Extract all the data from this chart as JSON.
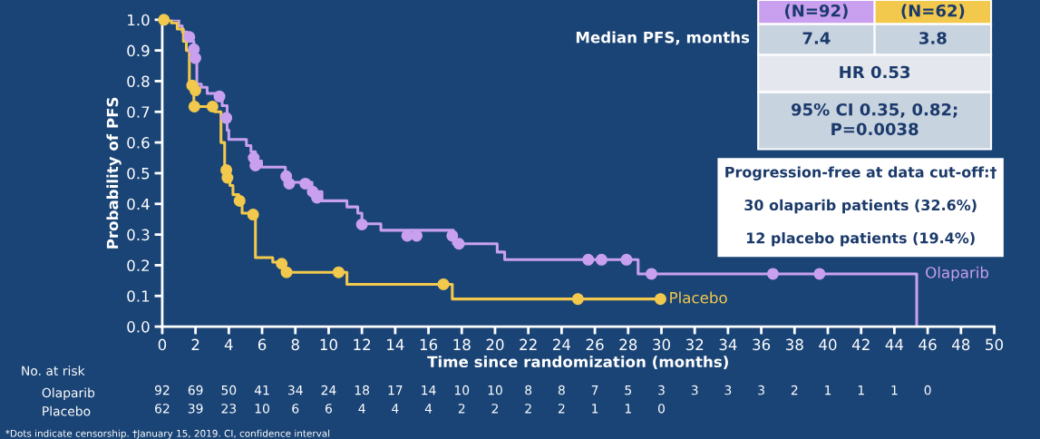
{
  "chart_data": {
    "type": "step",
    "xlabel": "Time since randomization (months)",
    "ylabel": "Probability of PFS",
    "xlim": [
      0,
      50
    ],
    "xticks": [
      0,
      2,
      4,
      6,
      8,
      10,
      12,
      14,
      16,
      18,
      20,
      22,
      24,
      26,
      28,
      30,
      32,
      34,
      36,
      38,
      40,
      42,
      44,
      46,
      48,
      50
    ],
    "ylim": [
      0,
      1
    ],
    "yticks": [
      {
        "value": 0,
        "label": "0.0"
      },
      {
        "value": 0.1,
        "label": "0.1"
      },
      {
        "value": 0.2,
        "label": "0.2"
      },
      {
        "value": 0.3,
        "label": "0.3"
      },
      {
        "value": 0.4,
        "label": "0.4"
      },
      {
        "value": 0.5,
        "label": "0.5"
      },
      {
        "value": 0.6,
        "label": "0.6"
      },
      {
        "value": 0.7,
        "label": "0.7"
      },
      {
        "value": 0.8,
        "label": "0.8"
      },
      {
        "value": 0.9,
        "label": "0.9"
      },
      {
        "value": 1,
        "label": "1.0"
      }
    ],
    "grid": false,
    "legend": false,
    "line_style": "solid",
    "series": [
      {
        "name": "Olaparib",
        "color": "#c9a0f0",
        "x": [
          0,
          1.0,
          1.2,
          1.5,
          1.9,
          2.08,
          2.35,
          2.7,
          3.6,
          3.9,
          4.0,
          5.06,
          5.33,
          5.6,
          5.97,
          7.4,
          7.6,
          9.0,
          9.6,
          11.1,
          11.75,
          12.0,
          13.14,
          17.5,
          20.13,
          20.58,
          28.6,
          45.34
        ],
        "values": [
          1.0,
          0.98,
          0.96,
          0.93,
          0.88,
          0.79,
          0.78,
          0.76,
          0.72,
          0.64,
          0.61,
          0.59,
          0.57,
          0.54,
          0.52,
          0.49,
          0.47,
          0.44,
          0.41,
          0.39,
          0.37,
          0.335,
          0.314,
          0.27,
          0.243,
          0.218,
          0.172,
          0
        ]
      },
      {
        "name": "Placebo",
        "color": "#f2c94c",
        "x": [
          0,
          0.54,
          0.9,
          1.27,
          1.45,
          1.63,
          1.9,
          3.16,
          3.53,
          3.75,
          3.9,
          4.07,
          4.25,
          4.6,
          4.8,
          5.6,
          6.64,
          7.3,
          11.1,
          17.43,
          29.94
        ],
        "values": [
          1.0,
          0.99,
          0.97,
          0.93,
          0.9,
          0.79,
          0.717,
          0.7,
          0.6,
          0.51,
          0.485,
          0.46,
          0.43,
          0.4,
          0.37,
          0.225,
          0.21,
          0.177,
          0.138,
          0.09,
          0.09
        ]
      },
      {
        "type": "scatter",
        "marker": "circle",
        "color": "#c9a0f0",
        "x": [
          1.63,
          1.9,
          1.99,
          3.44,
          3.85,
          5.5,
          5.6,
          7.45,
          7.63,
          8.6,
          9.04,
          9.3,
          12.0,
          14.72,
          15.29,
          17.43,
          17.83,
          25.6,
          26.4,
          27.9,
          29.4,
          36.7,
          39.5
        ],
        "values": [
          0.944,
          0.904,
          0.875,
          0.75,
          0.68,
          0.55,
          0.525,
          0.49,
          0.466,
          0.466,
          0.44,
          0.42,
          0.333,
          0.296,
          0.296,
          0.296,
          0.27,
          0.218,
          0.218,
          0.218,
          0.172,
          0.172,
          0.172
        ]
      },
      {
        "type": "scatter",
        "marker": "circle",
        "color": "#f2c94c",
        "x": [
          0.1,
          1.8,
          1.99,
          1.93,
          3.02,
          3.85,
          3.92,
          4.65,
          5.46,
          7.18,
          7.47,
          10.6,
          16.9,
          24.98,
          29.94
        ],
        "values": [
          1.0,
          0.786,
          0.77,
          0.717,
          0.717,
          0.51,
          0.485,
          0.41,
          0.365,
          0.205,
          0.177,
          0.177,
          0.138,
          0.09,
          0.09
        ]
      }
    ],
    "annotations": [
      "No. at risk",
      "Olaparib",
      "92 69 50 41 34 24 18 17 14 10 10 8 8 7 5 3 3 3 3 2 1 1 1 0",
      "Placebo",
      "62 39 23 10 6 6 4 4 4 2 2 2 2 1 1 0",
      "(N=92)",
      "(N=62)",
      "Median PFS, months",
      "7.4",
      "3.8",
      "HR 0.53",
      "95% CI 0.35, 0.82;\nP=0.0038",
      "Progression-free at data cut-off:†",
      "30 olaparib patients (32.6%)",
      "12 placebo patients (19.4%)",
      "*Dots indicate censorship. †January 15, 2019. CI, confidence interval"
    ]
  }
}
